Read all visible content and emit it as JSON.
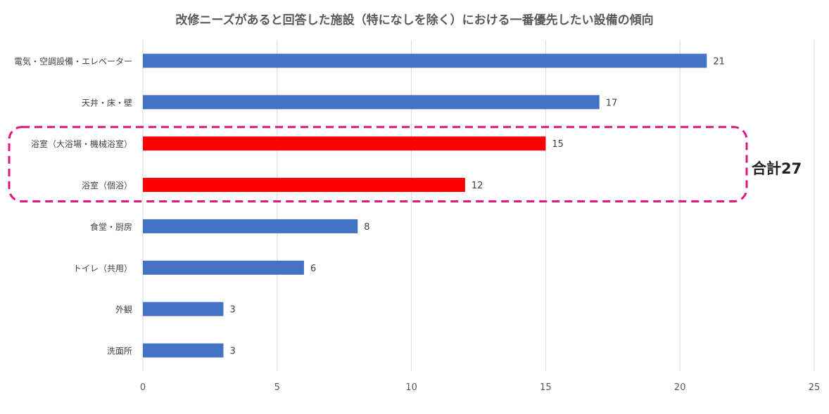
{
  "chart_data": {
    "type": "bar",
    "orientation": "horizontal",
    "title": "改修ニーズがあると回答した施設（特になしを除く）における一番優先したい設備の傾向",
    "categories": [
      "電気・空調設備・エレベーター",
      "天井・床・壁",
      "浴室（大浴場・機械浴室）",
      "浴室（個浴）",
      "食堂・厨房",
      "トイレ（共用）",
      "外観",
      "洗面所"
    ],
    "values": [
      21,
      17,
      15,
      12,
      8,
      6,
      3,
      3
    ],
    "highlighted": [
      false,
      false,
      true,
      true,
      false,
      false,
      false,
      false
    ],
    "xlim": [
      0,
      25
    ],
    "xticks": [
      0,
      5,
      10,
      15,
      20,
      25
    ],
    "xlabel": "",
    "ylabel": "",
    "grid": true,
    "colors": {
      "default": "#4472C4",
      "highlight": "#FF0000",
      "annotation_box": "#E0177A"
    },
    "annotation": {
      "text": "合計27",
      "covers": [
        "浴室（大浴場・機械浴室）",
        "浴室（個浴）"
      ]
    }
  }
}
